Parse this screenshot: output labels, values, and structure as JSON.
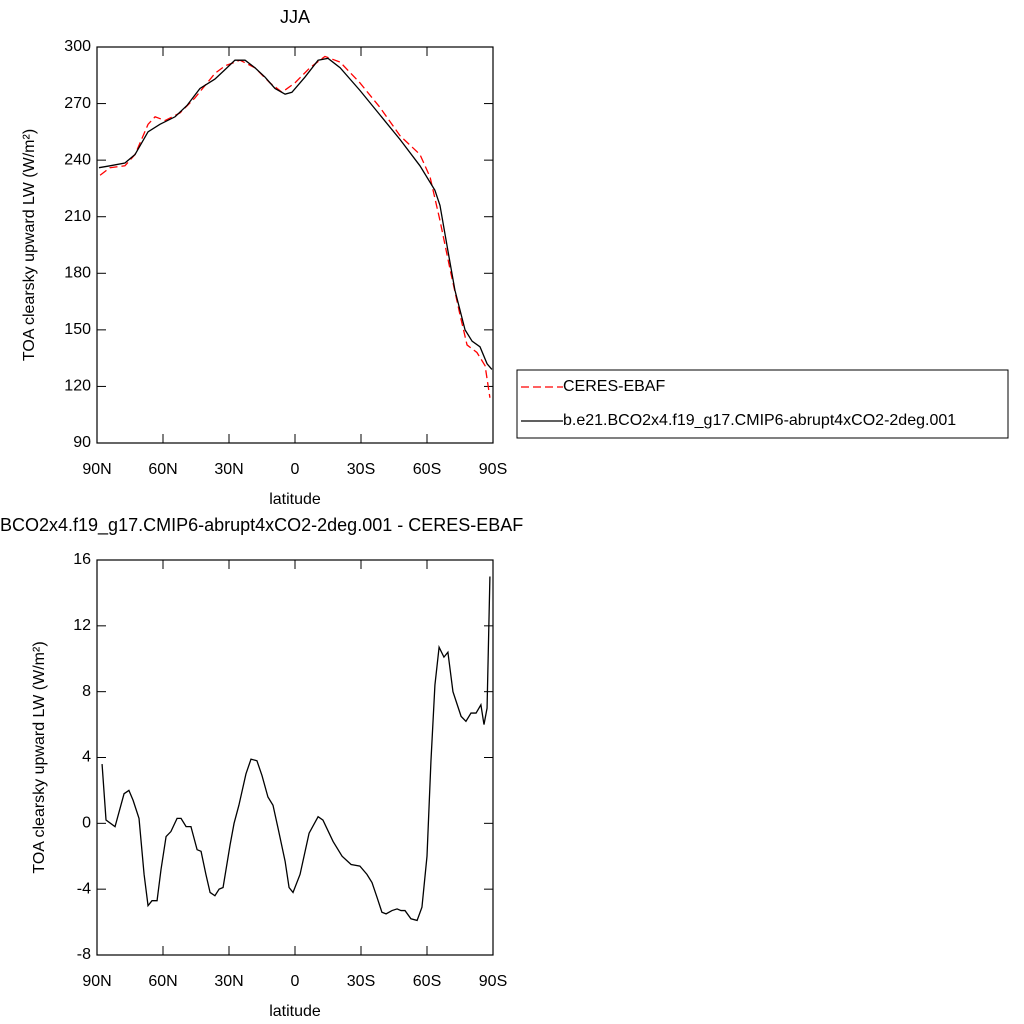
{
  "chart_data": [
    {
      "type": "line",
      "title": "JJA",
      "xlabel": "latitude",
      "ylabel": "TOA clearsky upward LW (W/m²)",
      "xlim": [
        90,
        -90
      ],
      "xticks": [
        {
          "value": 90,
          "label": "90N"
        },
        {
          "value": 60,
          "label": "60N"
        },
        {
          "value": 30,
          "label": "30N"
        },
        0,
        {
          "value": -30,
          "label": "30S"
        },
        {
          "value": -60,
          "label": "60S"
        },
        {
          "value": -90,
          "label": "90S"
        }
      ],
      "ylim": [
        90,
        300
      ],
      "yticks": [
        90,
        120,
        150,
        180,
        210,
        240,
        270,
        300
      ],
      "legend": "right",
      "series": [
        {
          "name": "CERES-EBAF",
          "color": "#ff0000",
          "dash": "dashed",
          "x": [
            88.6,
            84.1,
            77.3,
            72.7,
            66.8,
            63.6,
            59.1,
            52.3,
            45.5,
            36.4,
            31.8,
            25.0,
            18.2,
            11.4,
            5.9,
            0,
            -6.8,
            -13.6,
            -20.5,
            -29.5,
            -38.6,
            -47.7,
            -56.8,
            -61.4,
            -65.9,
            -70.5,
            -75.0,
            -78.2,
            -82.7,
            -86.4,
            -88.6
          ],
          "values": [
            232,
            236,
            237,
            243,
            259,
            263,
            261,
            265,
            273,
            286,
            290,
            293,
            289,
            281,
            276,
            281,
            289,
            295,
            292,
            281,
            268,
            253,
            243,
            231,
            208,
            182,
            158,
            142,
            138,
            131,
            114
          ]
        },
        {
          "name": "b.e21.BCO2x4.f19_g17.CMIP6-abrupt4xCO2-2deg.001",
          "color": "#000000",
          "dash": "solid",
          "x": [
            89.1,
            84.1,
            77.3,
            72.7,
            66.8,
            61.4,
            54.5,
            49.1,
            43.2,
            36.4,
            31.8,
            27.3,
            22.7,
            18.2,
            13.6,
            9.1,
            4.5,
            1.4,
            -4.5,
            -10.5,
            -15.0,
            -20.5,
            -29.5,
            -38.6,
            -47.7,
            -56.8,
            -63.6,
            -65.9,
            -69.5,
            -72.7,
            -77.3,
            -80.5,
            -84.1,
            -87.3,
            -89.5
          ],
          "values": [
            236,
            237,
            238.5,
            243,
            255,
            259,
            263,
            269,
            278,
            283,
            288,
            293,
            293,
            289,
            284,
            278,
            275,
            276,
            284,
            293,
            294,
            289,
            277,
            264,
            251,
            237,
            224,
            216,
            192,
            171,
            150,
            144,
            141,
            132,
            129
          ]
        }
      ]
    },
    {
      "type": "line",
      "title": "BCO2x4.f19_g17.CMIP6-abrupt4xCO2-2deg.001 - CERES-EBAF",
      "xlabel": "latitude",
      "ylabel": "TOA clearsky upward LW (W/m²)",
      "xlim": [
        90,
        -90
      ],
      "xticks": [
        {
          "value": 90,
          "label": "90N"
        },
        {
          "value": 60,
          "label": "60N"
        },
        {
          "value": 30,
          "label": "30N"
        },
        0,
        {
          "value": -30,
          "label": "30S"
        },
        {
          "value": -60,
          "label": "60S"
        },
        {
          "value": -90,
          "label": "90S"
        }
      ],
      "ylim": [
        -8,
        16
      ],
      "yticks": [
        -8,
        -4,
        0,
        4,
        8,
        12,
        16
      ],
      "series": [
        {
          "color": "#000000",
          "dash": "solid",
          "x": [
            87.7,
            85.9,
            81.8,
            77.7,
            75.5,
            73.6,
            70.9,
            68.6,
            66.8,
            65.0,
            62.7,
            60.9,
            58.6,
            56.4,
            53.6,
            51.8,
            49.5,
            47.3,
            44.5,
            42.7,
            40.5,
            38.6,
            36.4,
            34.5,
            32.7,
            29.5,
            27.7,
            25.5,
            22.3,
            20.0,
            17.3,
            15.0,
            12.3,
            10.0,
            7.7,
            4.5,
            2.7,
            0.9,
            -2.3,
            -6.4,
            -10.5,
            -12.7,
            -17.3,
            -21.4,
            -25.5,
            -29.5,
            -32.7,
            -35.0,
            -37.3,
            -39.5,
            -41.4,
            -44.1,
            -46.4,
            -48.2,
            -50.0,
            -52.7,
            -55.5,
            -57.7,
            -60.0,
            -61.8,
            -63.6,
            -65.5,
            -67.7,
            -69.5,
            -71.8,
            -75.5,
            -77.7,
            -80.0,
            -82.3,
            -84.5,
            -85.9,
            -87.3,
            -88.6
          ],
          "values": [
            3.6,
            0.2,
            -0.2,
            1.8,
            2.0,
            1.4,
            0.3,
            -3.1,
            -5.0,
            -4.7,
            -4.7,
            -2.8,
            -0.8,
            -0.5,
            0.3,
            0.3,
            -0.2,
            -0.2,
            -1.6,
            -1.7,
            -3.1,
            -4.2,
            -4.4,
            -4.0,
            -3.9,
            -1.3,
            0.0,
            1.1,
            3.0,
            3.9,
            3.8,
            2.9,
            1.6,
            1.1,
            -0.3,
            -2.3,
            -3.9,
            -4.2,
            -3.1,
            -0.6,
            0.4,
            0.2,
            -1.1,
            -2.0,
            -2.5,
            -2.6,
            -3.1,
            -3.6,
            -4.5,
            -5.4,
            -5.5,
            -5.3,
            -5.2,
            -5.3,
            -5.3,
            -5.8,
            -5.9,
            -5.1,
            -2.0,
            3.8,
            8.4,
            10.7,
            10.1,
            10.4,
            8.0,
            6.5,
            6.2,
            6.7,
            6.7,
            7.2,
            6.0,
            7.0,
            15.0
          ]
        }
      ]
    }
  ]
}
